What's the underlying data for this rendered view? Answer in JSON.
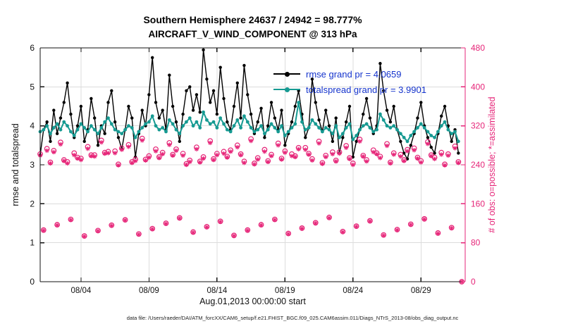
{
  "colors": {
    "rmse": "#000000",
    "totalspread": "#169a92",
    "obs": "#e62578",
    "legend_text": "#1433cc",
    "grid": "#dcdcdc",
    "axis": "#111111"
  },
  "caption": "data file: /Users/raeder/DAI/ATM_forcXX/CAM6_setup/f.e21.FHIST_BGC.f09_025.CAM6assim.011/Diags_NTrS_2013-08/obs_diag_output.nc",
  "chart_data": {
    "type": "line",
    "title": "Southern Hemisphere 24637 / 24942 = 98.777%",
    "subtitle": "AIRCRAFT_V_WIND_COMPONENT @ 313 hPa",
    "xlabel": "Aug.01,2013 00:00:00 start",
    "ylabel_left": "rmse and totalspread",
    "ylabel_right": "# of obs: o=possible; *=assimilated",
    "ylim_left": [
      0,
      6
    ],
    "yticks_left": [
      0,
      1,
      2,
      3,
      4,
      5,
      6
    ],
    "ylim_right": [
      0,
      480
    ],
    "yticks_right": [
      0,
      80,
      160,
      240,
      320,
      400,
      480
    ],
    "x_domain_days": [
      0,
      31.25
    ],
    "x_step_days": 0.25,
    "xticks": [
      {
        "day": 3,
        "label": "08/04"
      },
      {
        "day": 8,
        "label": "08/09"
      },
      {
        "day": 13,
        "label": "08/14"
      },
      {
        "day": 18,
        "label": "08/19"
      },
      {
        "day": 23,
        "label": "08/24"
      },
      {
        "day": 28,
        "label": "08/29"
      }
    ],
    "grid": true,
    "legend_position": "upper-middle-right",
    "legend": [
      {
        "name": "rmse",
        "label": "rmse grand pr = 4.0659"
      },
      {
        "name": "totalspread",
        "label": "totalspread grand pr = 3.9901"
      }
    ],
    "series": [
      {
        "name": "rmse",
        "color": "#000000",
        "values": [
          3.25,
          3.9,
          4.1,
          3.6,
          4.4,
          3.8,
          4.2,
          4.6,
          5.1,
          4.3,
          3.7,
          4.0,
          4.5,
          3.6,
          3.9,
          4.7,
          4.2,
          3.5,
          4.0,
          3.8,
          4.6,
          4.9,
          4.1,
          3.7,
          3.4,
          3.9,
          4.5,
          4.2,
          3.2,
          3.8,
          4.4,
          4.0,
          4.8,
          5.75,
          4.6,
          4.2,
          4.4,
          3.9,
          5.3,
          4.5,
          4.1,
          3.6,
          4.3,
          4.9,
          5.0,
          4.4,
          4.8,
          4.35,
          5.95,
          5.2,
          4.6,
          4.9,
          4.3,
          5.5,
          4.7,
          4.1,
          3.9,
          4.5,
          5.1,
          4.2,
          5.55,
          4.8,
          4.3,
          3.8,
          4.1,
          4.45,
          3.7,
          4.0,
          4.6,
          4.2,
          3.9,
          4.4,
          3.5,
          3.8,
          4.1,
          4.5,
          4.9,
          4.3,
          3.7,
          3.95,
          5.2,
          4.6,
          4.15,
          3.85,
          4.4,
          4.0,
          3.6,
          4.2,
          3.3,
          3.7,
          4.1,
          4.5,
          3.2,
          3.6,
          3.9,
          4.3,
          4.7,
          4.2,
          3.8,
          4.0,
          5.6,
          4.9,
          4.4,
          4.1,
          4.5,
          3.9,
          3.6,
          3.3,
          3.15,
          3.5,
          3.8,
          4.2,
          4.6,
          4.0,
          3.7,
          3.45,
          3.3,
          3.8,
          4.25,
          4.5,
          4.0,
          3.6,
          3.9,
          3.3
        ]
      },
      {
        "name": "totalspread",
        "color": "#169a92",
        "values": [
          3.85,
          3.9,
          4.0,
          3.8,
          3.95,
          4.05,
          3.9,
          4.1,
          4.0,
          3.85,
          3.75,
          3.9,
          4.05,
          3.95,
          3.85,
          4.0,
          3.9,
          3.8,
          3.95,
          4.1,
          4.2,
          4.05,
          3.9,
          3.85,
          3.8,
          3.9,
          4.0,
          3.95,
          3.7,
          3.85,
          3.95,
          4.05,
          4.1,
          4.25,
          4.0,
          3.9,
          3.95,
          3.85,
          4.15,
          4.05,
          3.9,
          3.8,
          4.0,
          4.1,
          4.2,
          4.0,
          4.1,
          3.95,
          4.35,
          4.15,
          4.05,
          4.1,
          3.95,
          4.2,
          4.05,
          3.9,
          3.85,
          4.0,
          4.15,
          3.95,
          4.25,
          4.1,
          3.95,
          3.85,
          3.9,
          4.0,
          3.8,
          3.9,
          4.05,
          3.95,
          3.85,
          4.0,
          3.75,
          3.85,
          3.95,
          4.05,
          4.6,
          4.1,
          3.9,
          3.95,
          4.15,
          4.05,
          3.95,
          3.85,
          3.95,
          3.9,
          3.8,
          4.0,
          3.7,
          3.8,
          3.95,
          4.05,
          3.65,
          3.75,
          3.9,
          4.0,
          4.05,
          3.95,
          3.85,
          3.9,
          4.3,
          4.15,
          4.0,
          3.95,
          4.0,
          3.9,
          3.8,
          3.7,
          3.6,
          3.75,
          3.85,
          3.95,
          4.05,
          3.95,
          3.85,
          3.75,
          3.7,
          3.85,
          4.0,
          4.1,
          3.9,
          3.8,
          3.85,
          3.6
        ]
      }
    ],
    "obs_counts": {
      "color": "#e62578",
      "marker_possible": "circle",
      "marker_assimilated": "asterisk",
      "possible": [
        262,
        106,
        273,
        245,
        269,
        117,
        286,
        250,
        246,
        128,
        264,
        255,
        253,
        94,
        277,
        260,
        260,
        105,
        290,
        265,
        267,
        116,
        268,
        241,
        274,
        127,
        281,
        246,
        251,
        98,
        294,
        251,
        258,
        109,
        272,
        256,
        265,
        120,
        285,
        261,
        272,
        131,
        263,
        242,
        249,
        102,
        276,
        247,
        256,
        113,
        289,
        252,
        263,
        124,
        267,
        257,
        270,
        95,
        280,
        262,
        247,
        106,
        293,
        243,
        254,
        117,
        271,
        248,
        261,
        128,
        284,
        253,
        268,
        99,
        262,
        258,
        275,
        110,
        275,
        263,
        252,
        121,
        288,
        244,
        259,
        132,
        266,
        249,
        266,
        103,
        279,
        254,
        243,
        114,
        292,
        259,
        250,
        125,
        270,
        264,
        257,
        96,
        283,
        245,
        264,
        107,
        261,
        250,
        271,
        118,
        274,
        255,
        248,
        129,
        287,
        260,
        255,
        100,
        265,
        241,
        262,
        111,
        278,
        246,
        0
      ],
      "assimilated": [
        259,
        105,
        269,
        243,
        266,
        116,
        282,
        248,
        243,
        127,
        260,
        253,
        250,
        93,
        273,
        258,
        257,
        104,
        286,
        263,
        264,
        115,
        264,
        239,
        271,
        126,
        277,
        244,
        248,
        97,
        290,
        249,
        255,
        108,
        268,
        254,
        262,
        119,
        281,
        259,
        269,
        130,
        259,
        240,
        246,
        101,
        272,
        245,
        253,
        112,
        285,
        250,
        260,
        123,
        263,
        255,
        267,
        94,
        276,
        260,
        244,
        105,
        289,
        241,
        251,
        116,
        267,
        246,
        258,
        127,
        280,
        251,
        265,
        98,
        258,
        256,
        272,
        109,
        271,
        261,
        249,
        120,
        284,
        242,
        256,
        131,
        262,
        247,
        263,
        102,
        275,
        252,
        240,
        113,
        288,
        257,
        247,
        124,
        266,
        262,
        254,
        95,
        279,
        243,
        261,
        106,
        257,
        248,
        268,
        117,
        270,
        253,
        245,
        128,
        283,
        258,
        252,
        99,
        261,
        239,
        259,
        110,
        274,
        244,
        0
      ]
    }
  }
}
